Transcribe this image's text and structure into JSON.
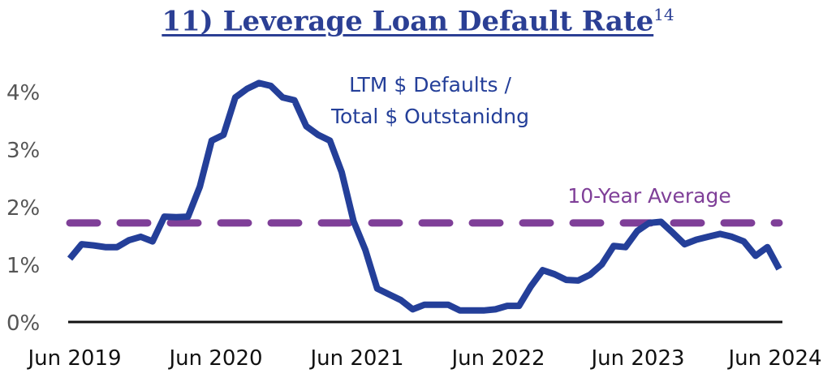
{
  "title": {
    "text": "11) Leverage Loan Default Rate",
    "superscript": "14"
  },
  "chart_data": {
    "type": "line",
    "title": "11) Leverage Loan Default Rate",
    "x_start": "Jun 2019",
    "x_end": "Jun 2024",
    "x_ticks": [
      "Jun 2019",
      "Jun 2020",
      "Jun 2021",
      "Jun 2022",
      "Jun 2023",
      "Jun 2024"
    ],
    "y_ticks": [
      "0%",
      "1%",
      "2%",
      "3%",
      "4%"
    ],
    "ylim": [
      0,
      4.3
    ],
    "grid": false,
    "series": [
      {
        "name": "LTM $ Defaults / Total $ Outstanidng",
        "color": "#243f99",
        "values": [
          1.1,
          1.35,
          1.33,
          1.3,
          1.3,
          1.42,
          1.48,
          1.4,
          1.83,
          1.82,
          1.83,
          2.35,
          3.15,
          3.25,
          3.9,
          4.05,
          4.15,
          4.1,
          3.9,
          3.85,
          3.4,
          3.25,
          3.15,
          2.6,
          1.75,
          1.25,
          0.58,
          0.48,
          0.38,
          0.22,
          0.3,
          0.3,
          0.3,
          0.2,
          0.2,
          0.2,
          0.22,
          0.28,
          0.28,
          0.62,
          0.9,
          0.83,
          0.73,
          0.72,
          0.82,
          1.0,
          1.32,
          1.3,
          1.58,
          1.72,
          1.74,
          1.55,
          1.35,
          1.43,
          1.48,
          1.53,
          1.48,
          1.4,
          1.15,
          1.3,
          0.92
        ]
      }
    ],
    "reference_line": {
      "name": "10-Year Average",
      "value": 1.72,
      "color": "#7f3f98",
      "style": "dashed"
    },
    "annotations": [
      "LTM $ Defaults /",
      "Total $ Outstanidng",
      "10-Year Average"
    ]
  }
}
